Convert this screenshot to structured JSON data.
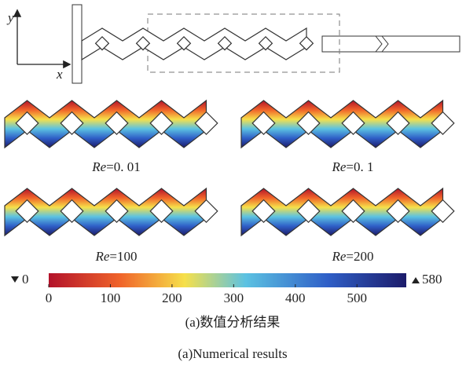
{
  "schematic": {
    "y_axis": "y",
    "x_axis": "x"
  },
  "panels": [
    {
      "symbol": "Re",
      "value": "=0. 01"
    },
    {
      "symbol": "Re",
      "value": "=0. 1"
    },
    {
      "symbol": "Re",
      "value": "=100"
    },
    {
      "symbol": "Re",
      "value": "=200"
    }
  ],
  "colorbar": {
    "range": [
      0,
      580
    ],
    "ticks": [
      0,
      100,
      200,
      300,
      400,
      500
    ]
  },
  "caption": {
    "chinese": "(a)数值分析结果",
    "english": "(a)Numerical results"
  }
}
